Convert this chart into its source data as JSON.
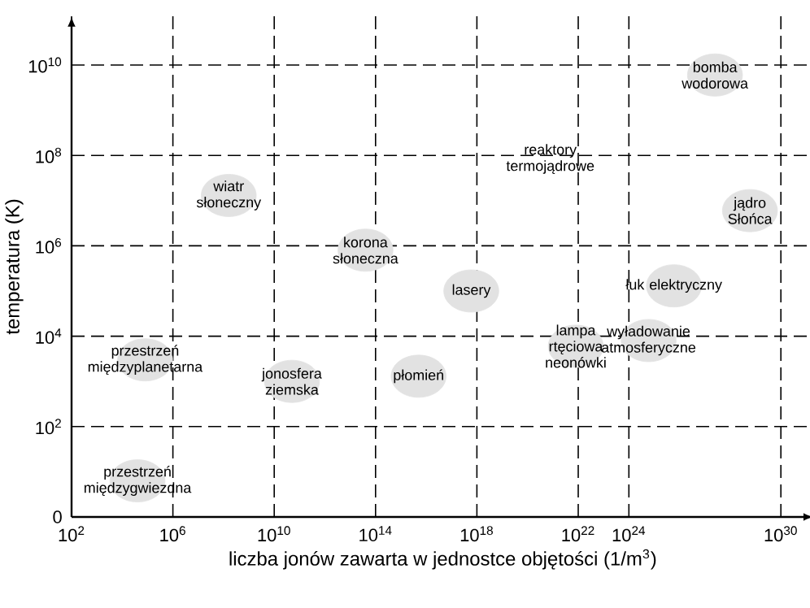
{
  "chart_data": {
    "type": "scatter",
    "xlabel": "liczba jonów zawarta w jednostce objętości (1/m$^{3}$)",
    "ylabel": "temperatura (K)",
    "xlim": [
      100.0,
      2e+31
    ],
    "ylim": [
      0,
      120000000000.0
    ],
    "xticks": [
      {
        "value": 100.0,
        "label": "10$^{2}$"
      },
      {
        "value": 1000000.0,
        "label": "10$^{6}$"
      },
      {
        "value": 10000000000.0,
        "label": "10$^{10}$"
      },
      {
        "value": 100000000000000.0,
        "label": "10$^{14}$"
      },
      {
        "value": 1e+18,
        "label": "10$^{18}$"
      },
      {
        "value": 1e+22,
        "label": "10$^{22}$"
      },
      {
        "value": 1e+24,
        "label": "10$^{24}$"
      },
      {
        "value": 1e+30,
        "label": "10$^{30}$"
      }
    ],
    "yticks": [
      0,
      {
        "value": 100.0,
        "label": "10$^{2}$"
      },
      {
        "value": 10000.0,
        "label": "10$^{4}$"
      },
      {
        "value": 1000000.0,
        "label": "10$^{6}$"
      },
      {
        "value": 100000000.0,
        "label": "10$^{8}$"
      },
      {
        "value": 10000000000.0,
        "label": "10$^{10}$"
      }
    ],
    "grid": true,
    "marker": "circle",
    "log": "xy",
    "series": [
      {
        "color": "#e2e2e2",
        "x": [
          40000.0,
          80000.0,
          50000000000.0,
          160000000.0,
          40000000000000.0,
          5000000000000000.0,
          6e+17,
          8e+21,
          6e+24,
          6e+25,
          2.5e+27,
          6e+28
        ],
        "values": [
          6.3,
          3000.0,
          1000.0,
          13000000.0,
          800000.0,
          1300.0,
          100000.0,
          6000.0,
          8000.0,
          130000.0,
          6000000000.0,
          6000000.0
        ],
        "value_labels": [
          "przestrzeń międzygwiezdna",
          "przestrzeń międzyplanetarna",
          "jonosfera ziemska",
          "wiatr słoneczny",
          "korona słoneczna",
          "płomień",
          "lasery",
          "lampa rtęciowa neonówki",
          "wyładowanie atmosferyczne",
          "łuk elektryczny",
          "bomba wodorowa",
          "jądro Słońca"
        ]
      }
    ],
    "annotations": [
      "reaktory termojądrowe"
    ]
  }
}
